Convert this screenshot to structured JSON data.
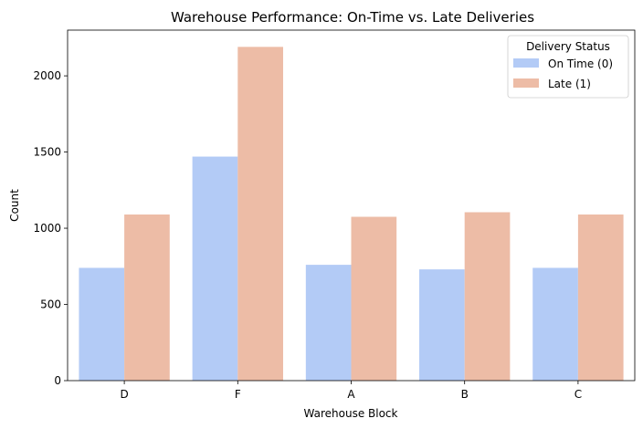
{
  "chart_data": {
    "type": "bar",
    "title": "Warehouse Performance: On-Time vs. Late Deliveries",
    "xlabel": "Warehouse Block",
    "ylabel": "Count",
    "categories": [
      "D",
      "F",
      "A",
      "B",
      "C"
    ],
    "ylim": [
      0,
      2300
    ],
    "yticks": [
      0,
      500,
      1000,
      1500,
      2000
    ],
    "grid": false,
    "legend": {
      "title": "Delivery Status",
      "placement": "top-right"
    },
    "series": [
      {
        "name": "On Time (0)",
        "color": "#b3cbf6",
        "values": [
          740,
          1470,
          760,
          730,
          740
        ]
      },
      {
        "name": "Late (1)",
        "color": "#edbca6",
        "values": [
          1090,
          2190,
          1075,
          1105,
          1090
        ]
      }
    ]
  }
}
